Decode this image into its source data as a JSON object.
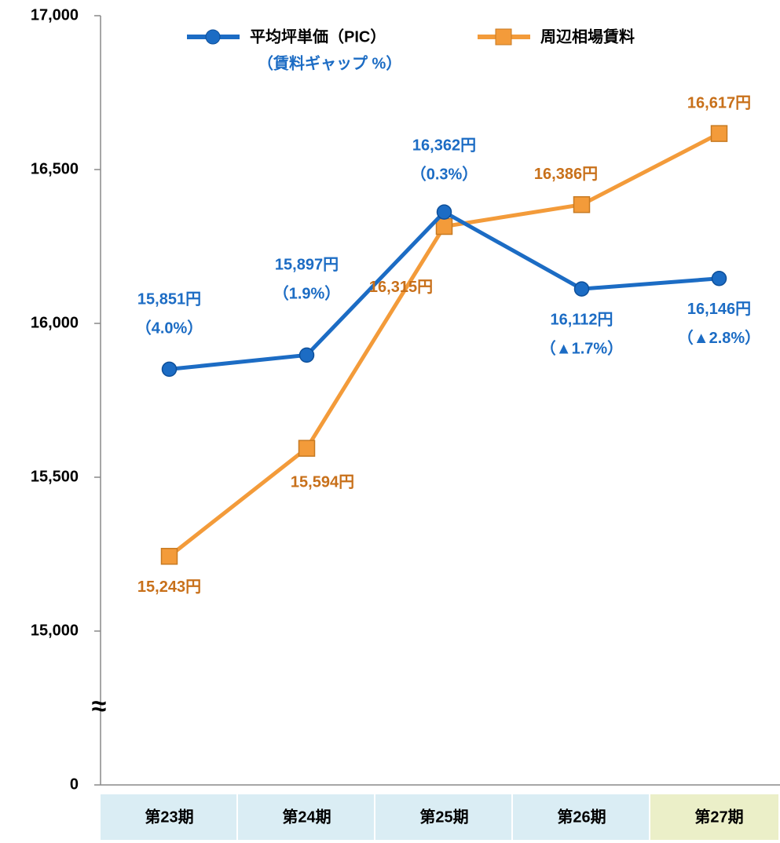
{
  "chart_data": {
    "type": "line",
    "categories": [
      "第23期",
      "第24期",
      "第25期",
      "第26期",
      "第27期"
    ],
    "category_colors": [
      "#daedf4",
      "#daedf4",
      "#daedf4",
      "#daedf4",
      "#ebefc8"
    ],
    "series": [
      {
        "name": "平均坪単価（PIC）",
        "legend_note": "（賃料ギャップ %）",
        "color": "#1c6cc4",
        "marker": "circle",
        "values": [
          15851,
          15897,
          16362,
          16112,
          16146
        ],
        "value_labels": [
          "15,851円",
          "15,897円",
          "16,362円",
          "16,112円",
          "16,146円"
        ],
        "gaps": [
          4.0,
          1.9,
          0.3,
          -1.7,
          -2.8
        ],
        "gap_labels": [
          "（4.0%）",
          "（1.9%）",
          "（0.3%）",
          "（▲1.7%）",
          "（▲2.8%）"
        ]
      },
      {
        "name": "周辺相場賃料",
        "color": "#f39b3a",
        "marker": "square",
        "values": [
          15243,
          15594,
          16315,
          16386,
          16617
        ],
        "value_labels": [
          "15,243円",
          "15,594円",
          "16,315円",
          "16,386円",
          "16,617円"
        ]
      }
    ],
    "ylim": [
      0,
      17000
    ],
    "yticks": [
      0,
      {
        "value": 15000,
        "label": "15,000"
      },
      {
        "value": 15500,
        "label": "15,500"
      },
      {
        "value": 16000,
        "label": "16,000"
      },
      {
        "value": 16500,
        "label": "16,500"
      },
      {
        "value": 17000,
        "label": "17,000"
      }
    ],
    "axis_break": {
      "label": "≈"
    }
  }
}
